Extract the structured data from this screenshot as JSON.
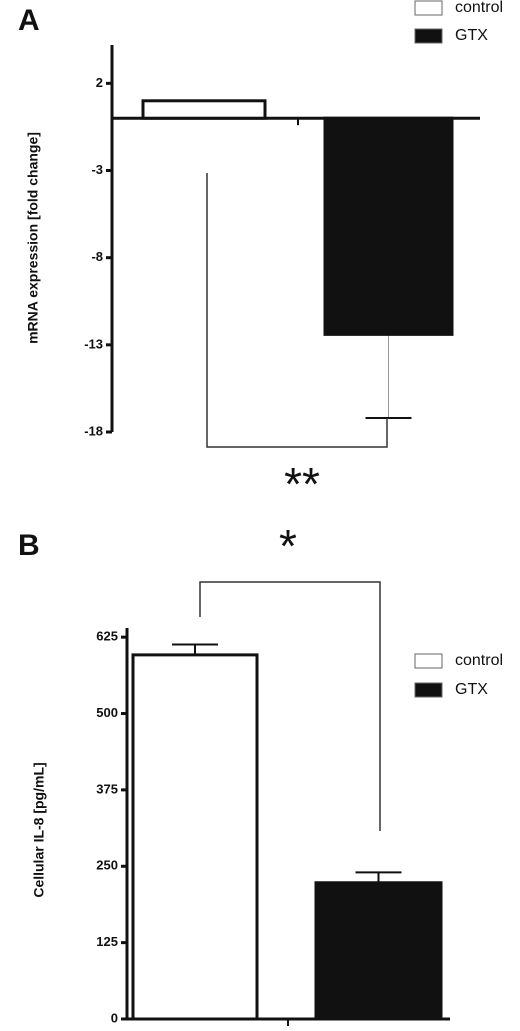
{
  "chart_data": [
    {
      "type": "bar",
      "panel_label": "A",
      "y_label": "mRNA expression [fold change]",
      "ylim": [
        -18,
        4.2
      ],
      "yticks": [
        2,
        -3,
        -8,
        -13,
        -18
      ],
      "series": [
        {
          "name": "control",
          "color": "#ffffff",
          "values": [
            1.0
          ]
        },
        {
          "name": "GTX",
          "color": "#111111",
          "values": [
            -12.4
          ],
          "errors": [
            4.8
          ]
        }
      ],
      "annotation": "**"
    },
    {
      "type": "bar",
      "panel_label": "B",
      "y_label": "Cellular IL-8 [pg/mL]",
      "ylim": [
        0,
        640
      ],
      "yticks": [
        0,
        125,
        250,
        375,
        500,
        625
      ],
      "series": [
        {
          "name": "control",
          "color": "#ffffff",
          "values": [
            596
          ],
          "errors": [
            17
          ]
        },
        {
          "name": "GTX",
          "color": "#111111",
          "values": [
            223
          ],
          "errors": [
            17
          ]
        }
      ],
      "annotation": "*"
    }
  ]
}
